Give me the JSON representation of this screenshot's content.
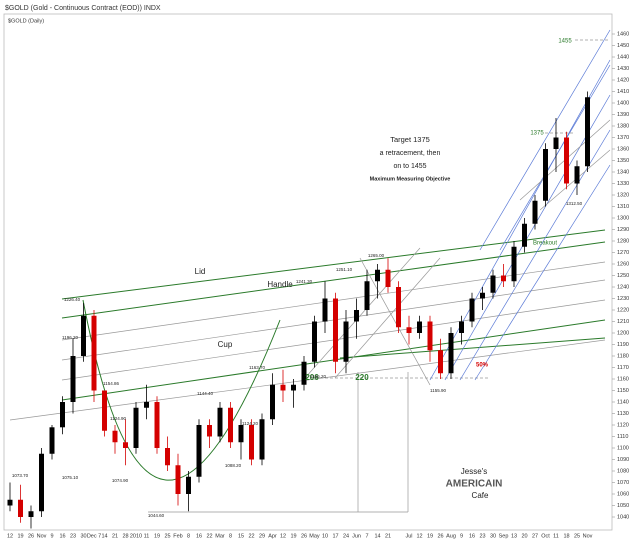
{
  "chart_data": {
    "type": "candlestick",
    "title": "$GOLD (Gold - Continuous Contract (EOD)) INDX",
    "subtitle": "$GOLD (Daily)",
    "up_color": "#000000",
    "down_color": "#d40000",
    "ylim": [
      1030,
      1470
    ],
    "yticks": [
      1040,
      1050,
      1060,
      1070,
      1080,
      1090,
      1100,
      1110,
      1120,
      1130,
      1140,
      1150,
      1160,
      1170,
      1180,
      1190,
      1200,
      1210,
      1220,
      1230,
      1240,
      1250,
      1260,
      1270,
      1280,
      1290,
      1300,
      1310,
      1320,
      1330,
      1340,
      1350,
      1360,
      1370,
      1380,
      1390,
      1400,
      1410,
      1420,
      1430,
      1440,
      1450,
      1460
    ],
    "categories": [
      "12",
      "19",
      "26",
      "Nov",
      "9",
      "16",
      "23",
      "30",
      "Dec 7",
      "14",
      "21",
      "28",
      "2010",
      "11",
      "19",
      "25",
      "Feb",
      "8",
      "16",
      "22",
      "Mar",
      "8",
      "15",
      "22",
      "29",
      "Apr",
      "12",
      "19",
      "26",
      "May",
      "10",
      "17",
      "24",
      "Jun",
      "7",
      "14",
      "21",
      null,
      "Jul",
      "12",
      "19",
      "26",
      "Aug",
      "9",
      "16",
      "23",
      "30",
      "Sep",
      "13",
      "20",
      "27",
      "Oct",
      "11",
      "18",
      "25",
      "Nov"
    ],
    "candles": [
      [
        1050,
        1070,
        1045,
        1055
      ],
      [
        1055,
        1068,
        1035,
        1040
      ],
      [
        1040,
        1050,
        1030,
        1045
      ],
      [
        1045,
        1100,
        1040,
        1095
      ],
      [
        1095,
        1120,
        1090,
        1118
      ],
      [
        1118,
        1145,
        1112,
        1140
      ],
      [
        1140,
        1195,
        1130,
        1180
      ],
      [
        1180,
        1226,
        1175,
        1215
      ],
      [
        1215,
        1220,
        1140,
        1150
      ],
      [
        1150,
        1150,
        1110,
        1115
      ],
      [
        1115,
        1120,
        1095,
        1105
      ],
      [
        1105,
        1125,
        1085,
        1100
      ],
      [
        1100,
        1140,
        1095,
        1135
      ],
      [
        1135,
        1155,
        1125,
        1140
      ],
      [
        1140,
        1145,
        1095,
        1100
      ],
      [
        1100,
        1110,
        1080,
        1085
      ],
      [
        1085,
        1095,
        1050,
        1060
      ],
      [
        1060,
        1080,
        1045,
        1075
      ],
      [
        1075,
        1125,
        1070,
        1120
      ],
      [
        1120,
        1125,
        1100,
        1110
      ],
      [
        1110,
        1140,
        1105,
        1135
      ],
      [
        1135,
        1140,
        1100,
        1105
      ],
      [
        1105,
        1125,
        1090,
        1120
      ],
      [
        1120,
        1125,
        1085,
        1090
      ],
      [
        1090,
        1130,
        1085,
        1125
      ],
      [
        1125,
        1165,
        1120,
        1155
      ],
      [
        1155,
        1168,
        1140,
        1150
      ],
      [
        1150,
        1160,
        1135,
        1155
      ],
      [
        1155,
        1180,
        1150,
        1175
      ],
      [
        1175,
        1215,
        1170,
        1210
      ],
      [
        1210,
        1245,
        1200,
        1230
      ],
      [
        1230,
        1235,
        1165,
        1175
      ],
      [
        1175,
        1220,
        1165,
        1210
      ],
      [
        1210,
        1230,
        1195,
        1220
      ],
      [
        1220,
        1255,
        1215,
        1245
      ],
      [
        1245,
        1260,
        1230,
        1255
      ],
      [
        1255,
        1265,
        1235,
        1240
      ],
      [
        1240,
        1245,
        1200,
        1205
      ],
      [
        1205,
        1215,
        1190,
        1200
      ],
      [
        1200,
        1215,
        1195,
        1210
      ],
      [
        1210,
        1215,
        1175,
        1185
      ],
      [
        1185,
        1195,
        1160,
        1165
      ],
      [
        1165,
        1205,
        1160,
        1200
      ],
      [
        1200,
        1215,
        1190,
        1210
      ],
      [
        1210,
        1235,
        1205,
        1230
      ],
      [
        1230,
        1240,
        1220,
        1235
      ],
      [
        1235,
        1255,
        1230,
        1250
      ],
      [
        1250,
        1260,
        1240,
        1245
      ],
      [
        1245,
        1280,
        1240,
        1275
      ],
      [
        1275,
        1300,
        1270,
        1295
      ],
      [
        1295,
        1320,
        1290,
        1315
      ],
      [
        1315,
        1365,
        1310,
        1360
      ],
      [
        1360,
        1387,
        1340,
        1370
      ],
      [
        1370,
        1375,
        1325,
        1330
      ],
      [
        1330,
        1350,
        1320,
        1345
      ],
      [
        1345,
        1410,
        1340,
        1405
      ]
    ],
    "annotations": [
      "Target 1375",
      "a retracement, then",
      "on  to 1455",
      "Maximum Measuring Objective",
      "1455",
      "1375",
      "Breakout",
      "Lid",
      "Handle",
      "Cup",
      "206",
      "220",
      "50%",
      "1226.40",
      "1196.20",
      "1154.86",
      "1124.90",
      "1075.10",
      "1073.70",
      "1074.90",
      "1044.60",
      "1088.20",
      "1144.40",
      "1124.20",
      "1163.70",
      "1241.30",
      "1166.20",
      "1251.10",
      "1265.00",
      "1155.90",
      "1312.50",
      "Jesse's",
      "AMERICAIN",
      "Cafe"
    ]
  }
}
